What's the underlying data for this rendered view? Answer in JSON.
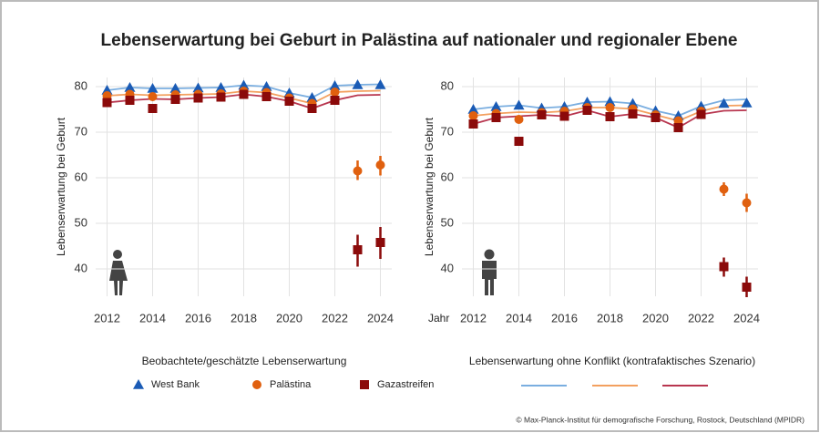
{
  "title": "Lebenserwartung bei Geburt in Palästina auf nationaler und regionaler Ebene",
  "legend": {
    "observed_title": "Beobachtete/geschätzte Lebenserwartung",
    "entries": [
      {
        "name": "West Bank",
        "color": "#1a5bb5",
        "marker": "triangle"
      },
      {
        "name": "Palästina",
        "color": "#e0600f",
        "marker": "circle"
      },
      {
        "name": "Gazastreifen",
        "color": "#8b0a0a",
        "marker": "square"
      }
    ],
    "counterfactual_title": "Lebenserwartung ohne Konflikt (kontrafaktisches Szenario)",
    "counterfactual_colors": [
      "#7aaee0",
      "#f3a05f",
      "#b8364f"
    ]
  },
  "credit": "© Max-Planck-Institut für demografische Forschung, Rostock, Deutschland (MPIDR)",
  "chart_data": [
    {
      "type": "line",
      "ylabel": "Lebenserwartung bei Geburt",
      "x": [
        2012,
        2013,
        2014,
        2015,
        2016,
        2017,
        2018,
        2019,
        2020,
        2021,
        2022,
        2023,
        2024
      ],
      "xlim": [
        2011.5,
        2024.5
      ],
      "xticks": [
        2012,
        2014,
        2016,
        2018,
        2020,
        2022,
        2024
      ],
      "ylim": [
        34,
        82
      ],
      "yticks": [
        40,
        50,
        60,
        70,
        80
      ],
      "grid": true,
      "series": [
        {
          "values": [
            79.2,
            79.8,
            79.6,
            79.6,
            79.7,
            79.8,
            80.3,
            80.0,
            78.6,
            77.6,
            80.2,
            80.4,
            80.4
          ]
        },
        {
          "values": [
            78.0,
            78.3,
            77.8,
            78.2,
            78.3,
            78.4,
            79.0,
            78.7,
            77.5,
            76.3,
            78.8,
            61.5,
            62.8
          ],
          "lower": [
            null,
            null,
            null,
            null,
            null,
            null,
            null,
            null,
            null,
            null,
            null,
            59.5,
            60.5
          ],
          "upper": [
            null,
            null,
            null,
            null,
            null,
            null,
            null,
            null,
            null,
            null,
            null,
            63.8,
            64.8
          ]
        },
        {
          "values": [
            76.5,
            77.0,
            75.2,
            77.2,
            77.5,
            77.7,
            78.3,
            77.8,
            76.8,
            75.2,
            77.0,
            44.2,
            45.8
          ],
          "lower": [
            null,
            null,
            null,
            null,
            null,
            null,
            null,
            null,
            null,
            null,
            null,
            40.5,
            42.2
          ],
          "upper": [
            null,
            null,
            null,
            null,
            null,
            null,
            null,
            null,
            null,
            null,
            null,
            47.5,
            49.2
          ]
        }
      ],
      "counterfactual": [
        {
          "values": [
            79.2,
            79.8,
            79.6,
            79.6,
            79.7,
            79.8,
            80.3,
            80.0,
            78.6,
            77.6,
            80.2,
            80.4,
            80.5
          ]
        },
        {
          "values": [
            78.0,
            78.3,
            78.1,
            78.2,
            78.3,
            78.4,
            79.0,
            78.7,
            77.5,
            76.3,
            78.8,
            79.0,
            79.1
          ]
        },
        {
          "values": [
            76.5,
            77.0,
            77.3,
            77.2,
            77.5,
            77.7,
            78.3,
            77.8,
            76.8,
            75.2,
            77.0,
            78.1,
            78.2
          ]
        }
      ]
    },
    {
      "type": "line",
      "ylabel": "Lebenserwartung bei Geburt",
      "xlabel": "Jahr",
      "x": [
        2012,
        2013,
        2014,
        2015,
        2016,
        2017,
        2018,
        2019,
        2020,
        2021,
        2022,
        2023,
        2024
      ],
      "xlim": [
        2011.5,
        2024.5
      ],
      "xticks": [
        2012,
        2014,
        2016,
        2018,
        2020,
        2022,
        2024
      ],
      "ylim": [
        34,
        82
      ],
      "yticks": [
        40,
        50,
        60,
        70,
        80
      ],
      "grid": true,
      "series": [
        {
          "values": [
            75.0,
            75.6,
            75.9,
            75.3,
            75.6,
            76.6,
            76.7,
            76.3,
            74.7,
            73.6,
            75.7,
            76.3,
            76.4
          ]
        },
        {
          "values": [
            73.6,
            74.1,
            72.8,
            74.3,
            74.6,
            75.4,
            75.4,
            75.1,
            73.8,
            72.5,
            74.6,
            57.5,
            54.5
          ],
          "lower": [
            null,
            null,
            null,
            null,
            null,
            null,
            null,
            null,
            null,
            null,
            null,
            56.0,
            52.5
          ],
          "upper": [
            null,
            null,
            null,
            null,
            null,
            null,
            null,
            null,
            null,
            null,
            null,
            59.0,
            56.5
          ]
        },
        {
          "values": [
            71.8,
            73.2,
            68.0,
            73.8,
            73.5,
            74.8,
            73.4,
            74.0,
            73.2,
            71.0,
            73.9,
            40.5,
            36.0
          ],
          "lower": [
            null,
            null,
            null,
            null,
            null,
            null,
            null,
            null,
            null,
            null,
            null,
            38.3,
            33.8
          ],
          "upper": [
            null,
            null,
            null,
            null,
            null,
            null,
            null,
            null,
            null,
            null,
            null,
            42.5,
            38.3
          ]
        }
      ],
      "counterfactual": [
        {
          "values": [
            75.0,
            75.6,
            75.9,
            75.3,
            75.6,
            76.6,
            76.7,
            76.3,
            74.7,
            73.6,
            75.7,
            77.0,
            77.2
          ]
        },
        {
          "values": [
            73.6,
            74.1,
            74.4,
            74.3,
            74.6,
            75.4,
            75.4,
            75.1,
            73.8,
            72.5,
            74.6,
            75.8,
            75.9
          ]
        },
        {
          "values": [
            71.8,
            73.2,
            73.5,
            73.8,
            73.5,
            74.8,
            73.4,
            74.0,
            73.2,
            71.0,
            73.9,
            74.7,
            74.8
          ]
        }
      ]
    }
  ]
}
